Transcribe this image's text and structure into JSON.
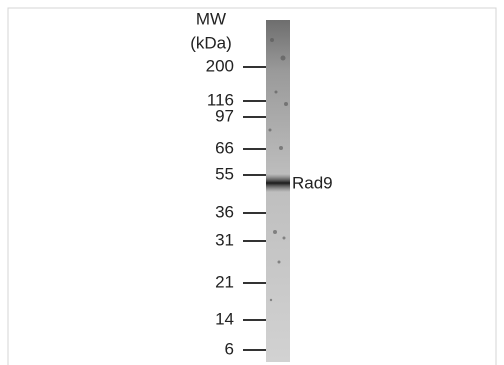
{
  "header": {
    "title": "MW",
    "unit": "(kDa)"
  },
  "markers": [
    "200",
    "116",
    "97",
    "66",
    "55",
    "36",
    "31",
    "21",
    "14",
    "6"
  ],
  "band": {
    "label": "Rad9"
  }
}
